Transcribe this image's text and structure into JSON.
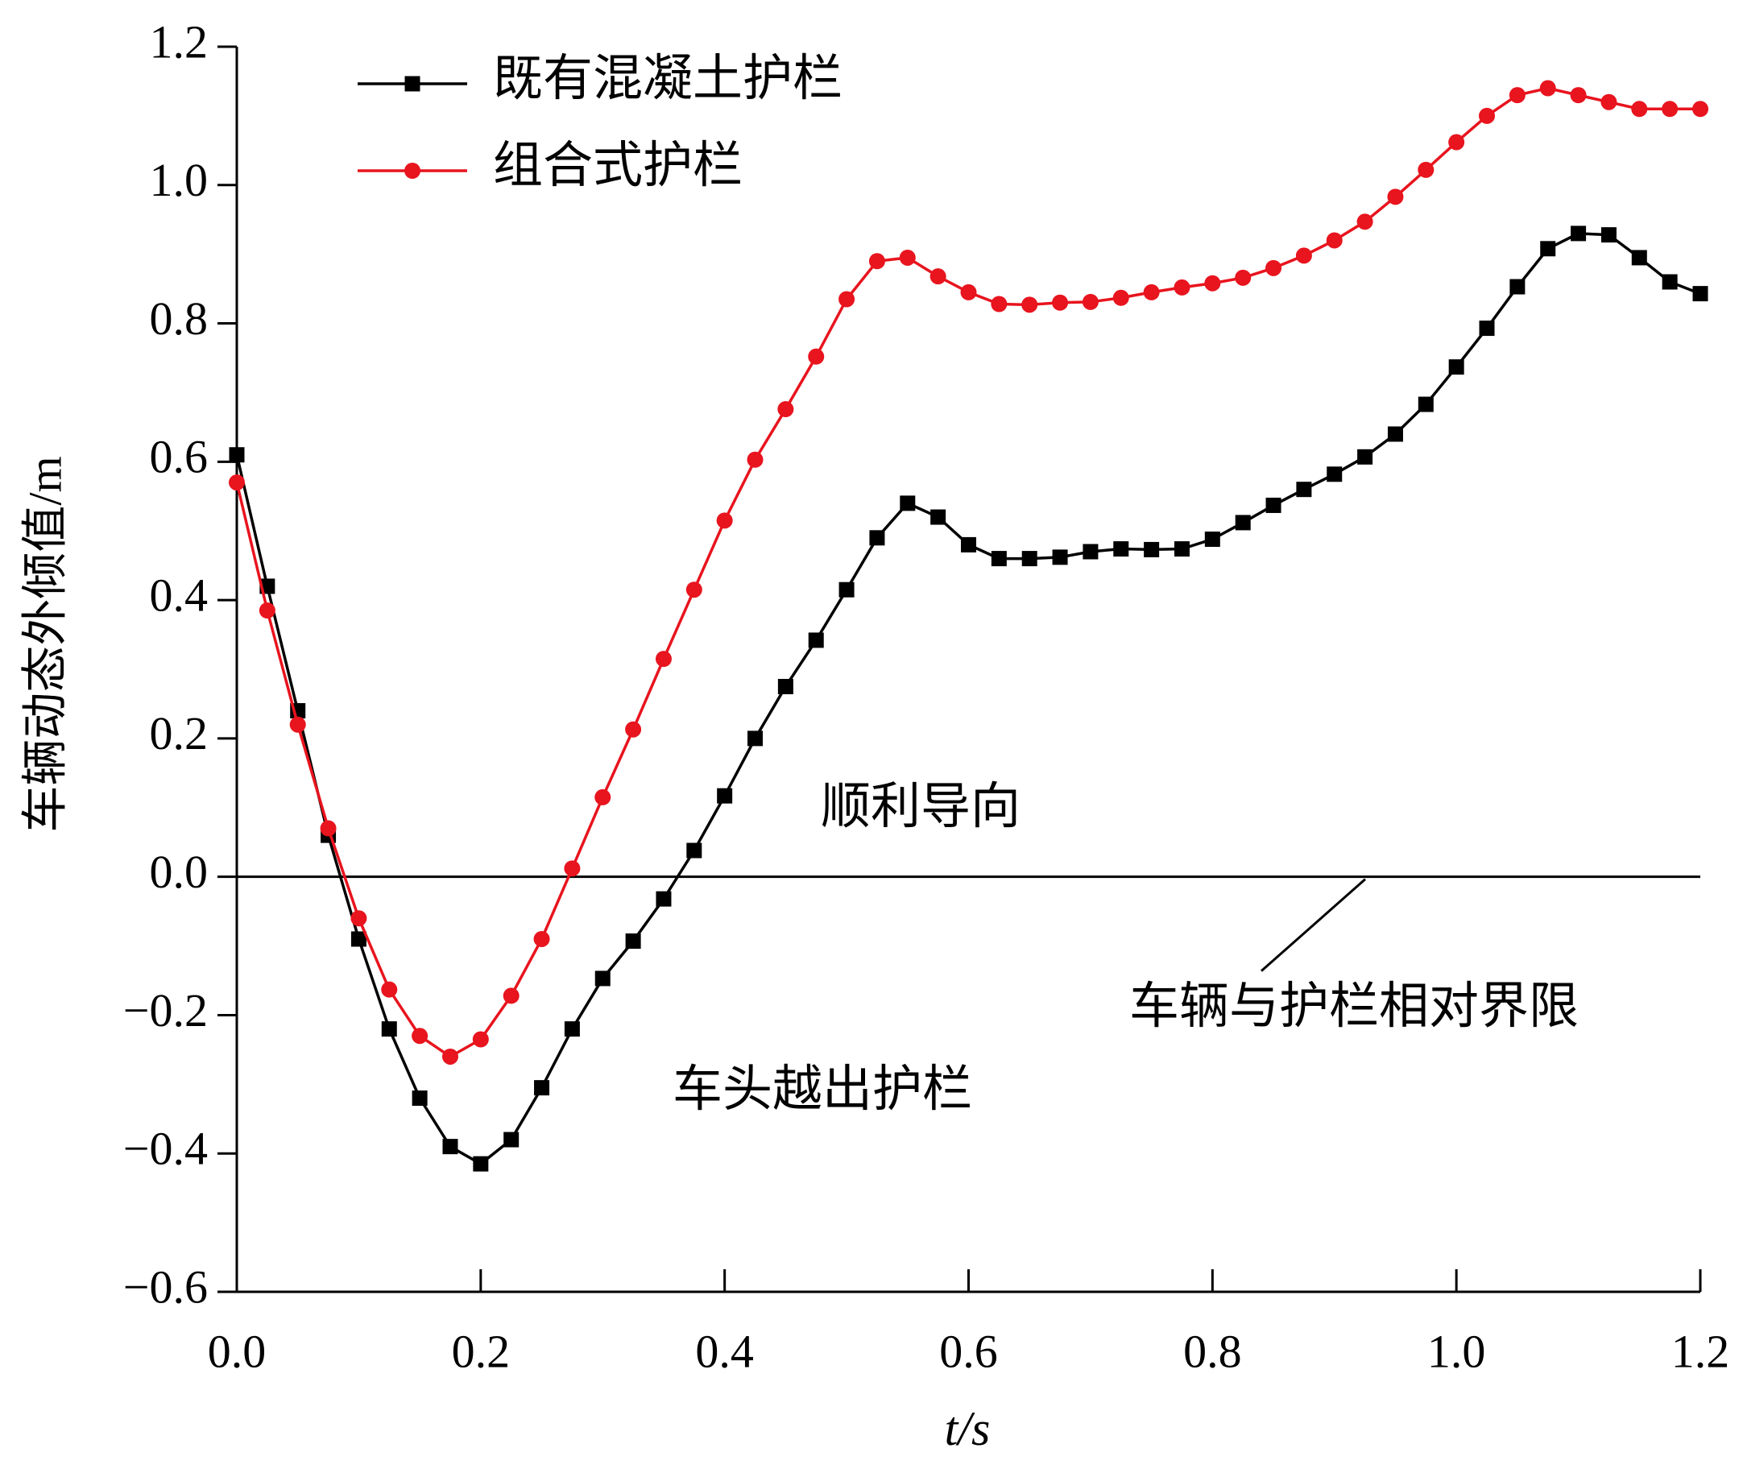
{
  "chart_data": {
    "type": "line",
    "x_label": "t/s",
    "y_label": "车辆动态外倾值/m",
    "x": [
      0,
      0.025,
      0.05,
      0.075,
      0.1,
      0.125,
      0.15,
      0.175,
      0.2,
      0.225,
      0.25,
      0.275,
      0.3,
      0.325,
      0.35,
      0.375,
      0.4,
      0.425,
      0.45,
      0.475,
      0.5,
      0.525,
      0.55,
      0.575,
      0.6,
      0.625,
      0.65,
      0.675,
      0.7,
      0.725,
      0.75,
      0.775,
      0.8,
      0.825,
      0.85,
      0.875,
      0.9,
      0.925,
      0.95,
      0.975,
      1.0,
      1.025,
      1.05,
      1.075,
      1.1,
      1.125,
      1.15,
      1.175,
      1.2
    ],
    "series": [
      {
        "name": "既有混凝土护栏",
        "color": "#000000",
        "marker": "square",
        "values": [
          0.61,
          0.42,
          0.24,
          0.06,
          -0.09,
          -0.22,
          -0.32,
          -0.39,
          -0.415,
          -0.38,
          -0.305,
          -0.22,
          -0.147,
          -0.093,
          -0.032,
          0.038,
          0.117,
          0.2,
          0.275,
          0.342,
          0.415,
          0.49,
          0.54,
          0.52,
          0.48,
          0.46,
          0.46,
          0.462,
          0.47,
          0.474,
          0.473,
          0.474,
          0.488,
          0.512,
          0.537,
          0.56,
          0.582,
          0.607,
          0.64,
          0.683,
          0.737,
          0.793,
          0.853,
          0.908,
          0.93,
          0.928,
          0.895,
          0.86,
          0.843
        ]
      },
      {
        "name": "组合式护栏",
        "color": "#e8141e",
        "marker": "circle",
        "values": [
          0.57,
          0.385,
          0.22,
          0.07,
          -0.06,
          -0.163,
          -0.23,
          -0.26,
          -0.235,
          -0.172,
          -0.09,
          0.012,
          0.115,
          0.213,
          0.315,
          0.415,
          0.515,
          0.603,
          0.676,
          0.752,
          0.835,
          0.89,
          0.895,
          0.868,
          0.845,
          0.828,
          0.827,
          0.83,
          0.831,
          0.837,
          0.845,
          0.852,
          0.858,
          0.866,
          0.88,
          0.898,
          0.92,
          0.947,
          0.983,
          1.022,
          1.062,
          1.1,
          1.13,
          1.14,
          1.13,
          1.12,
          1.11,
          1.11,
          1.11
        ]
      }
    ],
    "xlim": [
      0,
      1.2
    ],
    "xticks": [
      {
        "value": 0,
        "label": "0.0"
      },
      0.2,
      0.4,
      0.6,
      0.8,
      {
        "value": 1,
        "label": "1.0"
      },
      1.2
    ],
    "ylim": [
      -0.6,
      1.2
    ],
    "yticks": [
      {
        "value": -0.6,
        "label": "−0.6"
      },
      {
        "value": -0.4,
        "label": "−0.4"
      },
      {
        "value": -0.2,
        "label": "−0.2"
      },
      {
        "value": 0,
        "label": "0.0"
      },
      0.2,
      0.4,
      0.6,
      0.8,
      {
        "value": 1,
        "label": "1.0"
      },
      1.2
    ],
    "reference_line": {
      "value": 0,
      "label": "车辆与护栏相对界限"
    },
    "annotations": [
      "顺利导向",
      "车头越出护栏"
    ],
    "legend": "upper left"
  }
}
